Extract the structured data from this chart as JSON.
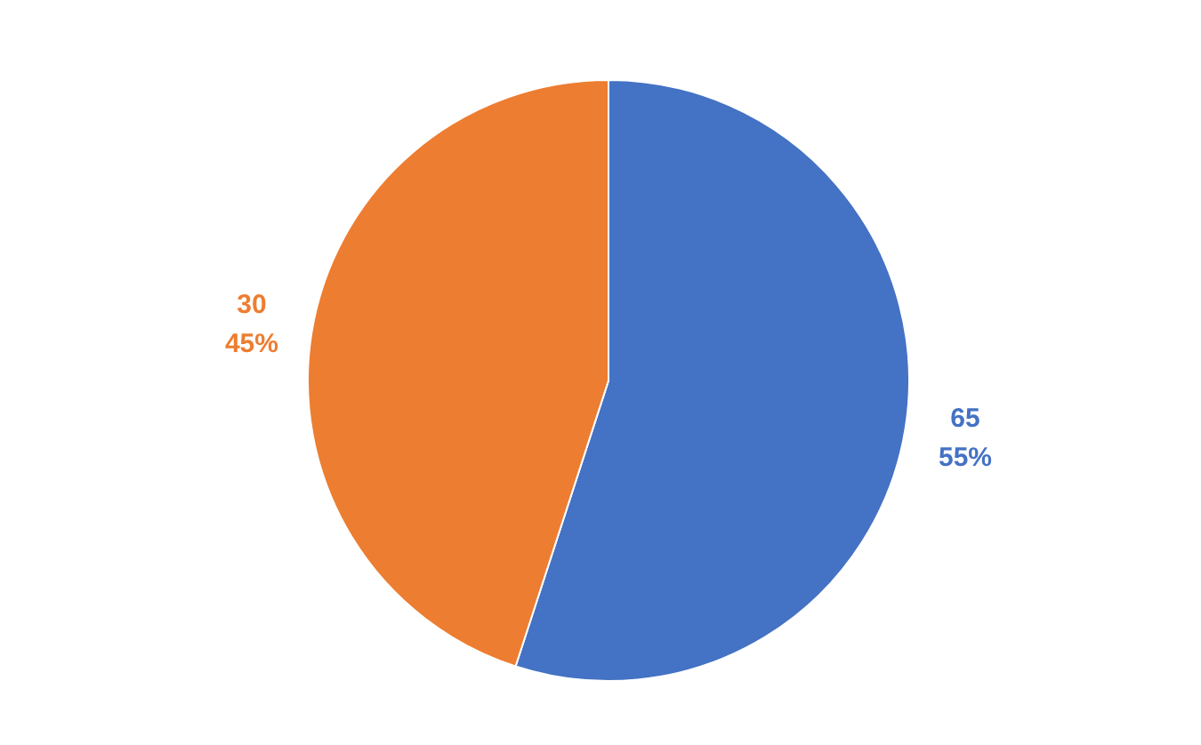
{
  "chart_data": {
    "type": "pie",
    "categories": [
      null,
      null
    ],
    "values": [
      55,
      45
    ],
    "colors": [
      "#4472c4",
      "#ed7d31"
    ],
    "value_labels": [
      "65\n55%",
      "30\n45%"
    ]
  }
}
